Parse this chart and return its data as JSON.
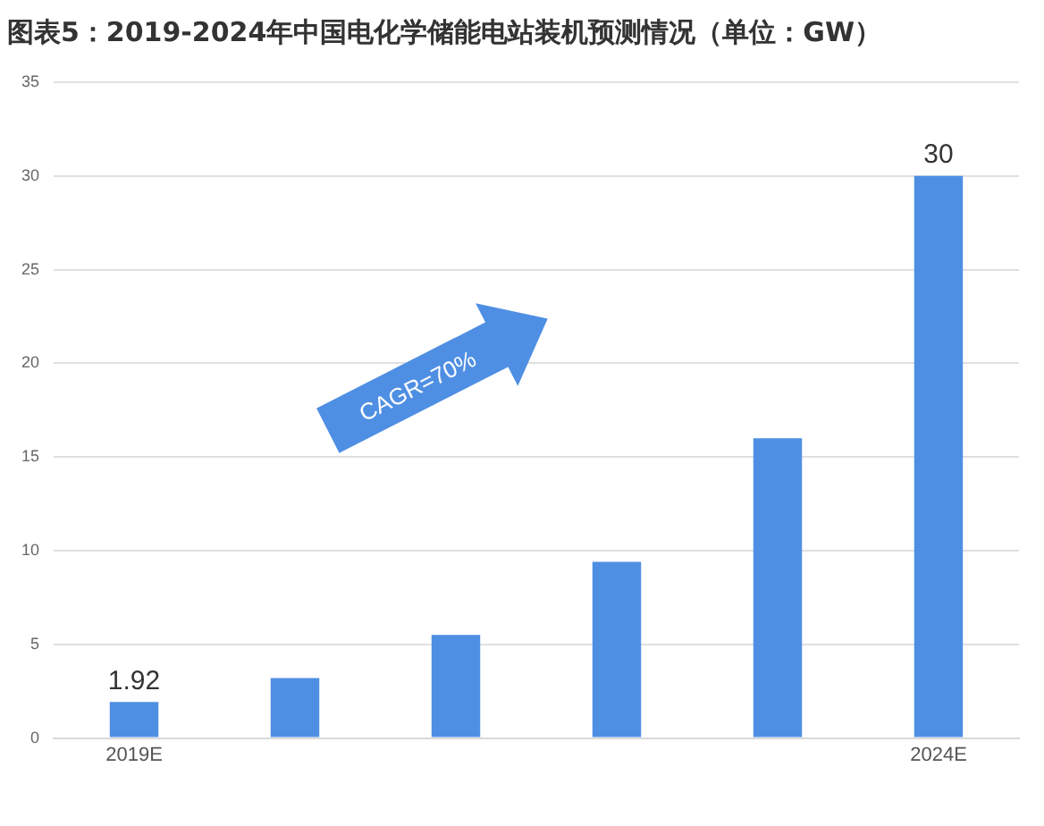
{
  "chart_data": {
    "type": "bar",
    "title": "图表5：2019-2024年中国电化学储能电站装机预测情况（单位：GW）",
    "categories": [
      "2019E",
      null,
      null,
      null,
      null,
      "2024E"
    ],
    "values": [
      1.92,
      3.2,
      5.5,
      9.4,
      16.0,
      30
    ],
    "value_labels": [
      "1.92",
      null,
      null,
      null,
      null,
      "30"
    ],
    "color": "#4f8fe3",
    "ylim": [
      0,
      35
    ],
    "yticks": [
      0,
      5,
      10,
      15,
      20,
      25,
      30,
      35
    ],
    "grid": "y",
    "legend": false,
    "annotations": [
      "CAGR=70%"
    ]
  }
}
